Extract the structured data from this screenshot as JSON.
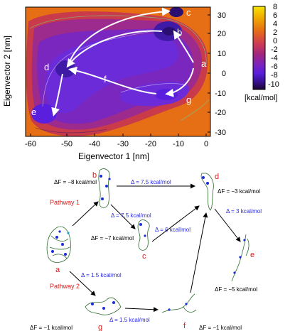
{
  "top_panel": {
    "xlabel": "Eigenvector 1 [nm]",
    "ylabel": "Eigenvector 2 [nm]",
    "xticks": [
      "-60",
      "-50",
      "-40",
      "-30",
      "-20",
      "-10",
      "0"
    ],
    "yticks": [
      "30",
      "20",
      "10",
      "0",
      "-10",
      "-20",
      "-30"
    ],
    "colorbar": {
      "ticks": [
        "8",
        "6",
        "4",
        "2",
        "0",
        "-2",
        "-4",
        "-6",
        "-8",
        "-10"
      ],
      "unit": "[kcal/mol]",
      "colors": [
        "#f5e500",
        "#f0a400",
        "#e46a17",
        "#cf3a55",
        "#a0247f",
        "#7c23bd",
        "#5a1fde",
        "#3a1099",
        "#1b0430"
      ]
    },
    "states": [
      "a",
      "b",
      "c",
      "d",
      "e",
      "f",
      "g"
    ]
  },
  "bottom_panel": {
    "pathway1": "Pathway 1",
    "pathway2": "Pathway 2",
    "labels": {
      "a": "a",
      "b": "b",
      "c": "c",
      "d": "d",
      "e": "e",
      "f": "f",
      "g": "g"
    },
    "free_energies": {
      "b": "ΔF = −8 kcal/mol",
      "c": "ΔF = −7 kcal/mol",
      "d": "ΔF = −3 kcal/mol",
      "e": "ΔF = −5 kcal/mol",
      "f": "ΔF = −1 kcal/mol",
      "g": "ΔF = −1 kcal/mol"
    },
    "transitions": {
      "b_d": "Δ = 7.5 kcal/mol",
      "b_c": "Δ = 7.5 kcal/mol",
      "c_d": "Δ = 6 kcal/mol",
      "d_e": "Δ = 3 kcal/mol",
      "a_g": "Δ = 1.5 kcal/mol",
      "g_f": "Δ = 1.5 kcal/mol"
    }
  }
}
